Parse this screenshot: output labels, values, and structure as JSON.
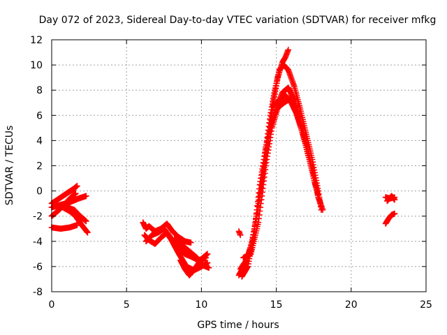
{
  "chart_data": {
    "type": "scatter",
    "title": "Day 072 of 2023, Sidereal Day-to-day VTEC variation (SDTVAR) for receiver mfkg",
    "xlabel": "GPS time / hours",
    "ylabel": "SDTVAR / TECUs",
    "xlim": [
      0,
      25
    ],
    "ylim": [
      -8,
      12
    ],
    "xticks": [
      0,
      5,
      10,
      15,
      20,
      25
    ],
    "yticks": [
      -8,
      -6,
      -4,
      -2,
      0,
      2,
      4,
      6,
      8,
      10,
      12
    ],
    "grid": true,
    "marker": "+",
    "color": "#ff0000",
    "series": [
      {
        "name": "segment-1",
        "tracks": [
          [
            [
              0.0,
              -1.0
            ],
            [
              0.5,
              -0.6
            ],
            [
              1.0,
              -0.2
            ],
            [
              1.5,
              0.2
            ],
            [
              1.7,
              0.4
            ]
          ],
          [
            [
              0.0,
              -1.3
            ],
            [
              0.6,
              -1.1
            ],
            [
              1.2,
              -0.9
            ],
            [
              1.8,
              -0.6
            ],
            [
              2.3,
              -0.4
            ]
          ],
          [
            [
              0.0,
              -2.0
            ],
            [
              0.5,
              -1.5
            ],
            [
              0.9,
              -1.0
            ],
            [
              1.3,
              -0.5
            ],
            [
              1.6,
              -0.2
            ]
          ],
          [
            [
              0.6,
              -1.2
            ],
            [
              1.2,
              -1.6
            ],
            [
              1.6,
              -2.0
            ],
            [
              2.0,
              -2.7
            ],
            [
              2.4,
              -3.3
            ]
          ],
          [
            [
              0.0,
              -2.9
            ],
            [
              0.6,
              -3.0
            ],
            [
              1.2,
              -2.9
            ],
            [
              1.7,
              -2.7
            ]
          ],
          [
            [
              1.0,
              -1.3
            ],
            [
              1.5,
              -1.5
            ],
            [
              1.9,
              -2.0
            ],
            [
              2.3,
              -2.4
            ]
          ]
        ]
      },
      {
        "name": "segment-2",
        "tracks": [
          [
            [
              6.1,
              -2.5
            ],
            [
              6.3,
              -3.0
            ],
            [
              6.5,
              -2.8
            ],
            [
              6.9,
              -3.2
            ],
            [
              7.3,
              -3.0
            ],
            [
              7.7,
              -2.6
            ],
            [
              8.0,
              -3.1
            ],
            [
              8.4,
              -3.6
            ],
            [
              8.9,
              -4.0
            ],
            [
              9.3,
              -4.1
            ]
          ],
          [
            [
              6.2,
              -3.5
            ],
            [
              6.5,
              -3.9
            ],
            [
              6.9,
              -4.2
            ],
            [
              7.3,
              -3.7
            ],
            [
              7.7,
              -3.3
            ],
            [
              8.0,
              -3.8
            ],
            [
              8.4,
              -4.5
            ],
            [
              8.9,
              -5.0
            ],
            [
              9.3,
              -5.2
            ],
            [
              9.8,
              -5.5
            ],
            [
              10.3,
              -5.3
            ]
          ],
          [
            [
              6.3,
              -4.0
            ],
            [
              6.7,
              -3.5
            ],
            [
              7.1,
              -3.3
            ],
            [
              7.5,
              -3.0
            ],
            [
              8.0,
              -3.9
            ],
            [
              8.5,
              -5.0
            ],
            [
              9.0,
              -6.0
            ],
            [
              9.5,
              -6.3
            ],
            [
              10.0,
              -6.0
            ],
            [
              10.4,
              -5.7
            ]
          ],
          [
            [
              8.6,
              -5.5
            ],
            [
              8.9,
              -6.2
            ],
            [
              9.2,
              -6.7
            ],
            [
              9.6,
              -6.1
            ],
            [
              10.0,
              -5.4
            ],
            [
              10.4,
              -5.0
            ]
          ],
          [
            [
              8.2,
              -3.8
            ],
            [
              8.7,
              -4.3
            ],
            [
              9.2,
              -4.8
            ],
            [
              9.7,
              -5.3
            ],
            [
              10.1,
              -5.9
            ],
            [
              10.5,
              -6.1
            ]
          ]
        ]
      },
      {
        "name": "segment-3",
        "tracks": [
          [
            [
              12.5,
              -3.2
            ],
            [
              12.6,
              -3.5
            ]
          ],
          [
            [
              12.5,
              -6.7
            ],
            [
              12.9,
              -5.8
            ],
            [
              13.3,
              -4.5
            ],
            [
              13.7,
              -2.0
            ],
            [
              14.1,
              1.0
            ],
            [
              14.5,
              4.5
            ],
            [
              14.8,
              7.0
            ],
            [
              15.1,
              9.0
            ],
            [
              15.4,
              10.2
            ],
            [
              15.6,
              10.6
            ],
            [
              15.8,
              11.2
            ]
          ],
          [
            [
              12.6,
              -6.2
            ],
            [
              13.0,
              -5.5
            ],
            [
              13.4,
              -4.0
            ],
            [
              13.8,
              -1.0
            ],
            [
              14.2,
              2.5
            ],
            [
              14.6,
              6.0
            ],
            [
              14.9,
              8.0
            ],
            [
              15.2,
              9.6
            ],
            [
              15.5,
              10.0
            ],
            [
              15.8,
              9.6
            ],
            [
              16.2,
              8.3
            ],
            [
              16.6,
              6.5
            ],
            [
              17.0,
              4.5
            ],
            [
              17.4,
              2.5
            ],
            [
              17.8,
              0.0
            ],
            [
              18.0,
              -1.5
            ]
          ],
          [
            [
              12.7,
              -6.8
            ],
            [
              13.1,
              -6.0
            ],
            [
              13.5,
              -3.5
            ],
            [
              13.9,
              0.5
            ],
            [
              14.3,
              3.5
            ],
            [
              14.7,
              5.5
            ],
            [
              15.0,
              6.5
            ],
            [
              15.4,
              7.8
            ],
            [
              15.8,
              8.2
            ],
            [
              16.2,
              7.2
            ],
            [
              16.6,
              5.8
            ],
            [
              17.0,
              3.8
            ],
            [
              17.4,
              1.8
            ],
            [
              17.8,
              -0.5
            ],
            [
              18.1,
              -1.5
            ]
          ],
          [
            [
              12.8,
              -5.3
            ],
            [
              13.3,
              -5.0
            ],
            [
              13.8,
              -2.5
            ],
            [
              14.3,
              2.0
            ],
            [
              14.7,
              5.0
            ],
            [
              15.1,
              6.6
            ],
            [
              15.5,
              7.0
            ],
            [
              15.9,
              7.3
            ],
            [
              16.3,
              6.3
            ],
            [
              16.7,
              4.8
            ],
            [
              17.1,
              3.0
            ],
            [
              17.5,
              1.0
            ],
            [
              17.9,
              -0.8
            ]
          ],
          [
            [
              14.8,
              6.8
            ],
            [
              15.2,
              7.2
            ],
            [
              15.6,
              7.6
            ],
            [
              16.0,
              7.0
            ],
            [
              16.4,
              6.0
            ],
            [
              16.8,
              4.4
            ],
            [
              17.2,
              2.5
            ],
            [
              17.6,
              0.5
            ],
            [
              18.0,
              -1.2
            ]
          ]
        ]
      },
      {
        "name": "segment-4",
        "tracks": [
          [
            [
              22.3,
              -0.5
            ],
            [
              22.6,
              -0.6
            ],
            [
              22.9,
              -0.5
            ]
          ],
          [
            [
              22.3,
              -2.6
            ],
            [
              22.5,
              -2.2
            ],
            [
              22.7,
              -1.9
            ],
            [
              22.9,
              -1.8
            ]
          ],
          [
            [
              22.4,
              -0.8
            ],
            [
              22.7,
              -0.4
            ],
            [
              22.9,
              -0.7
            ]
          ]
        ]
      }
    ]
  }
}
